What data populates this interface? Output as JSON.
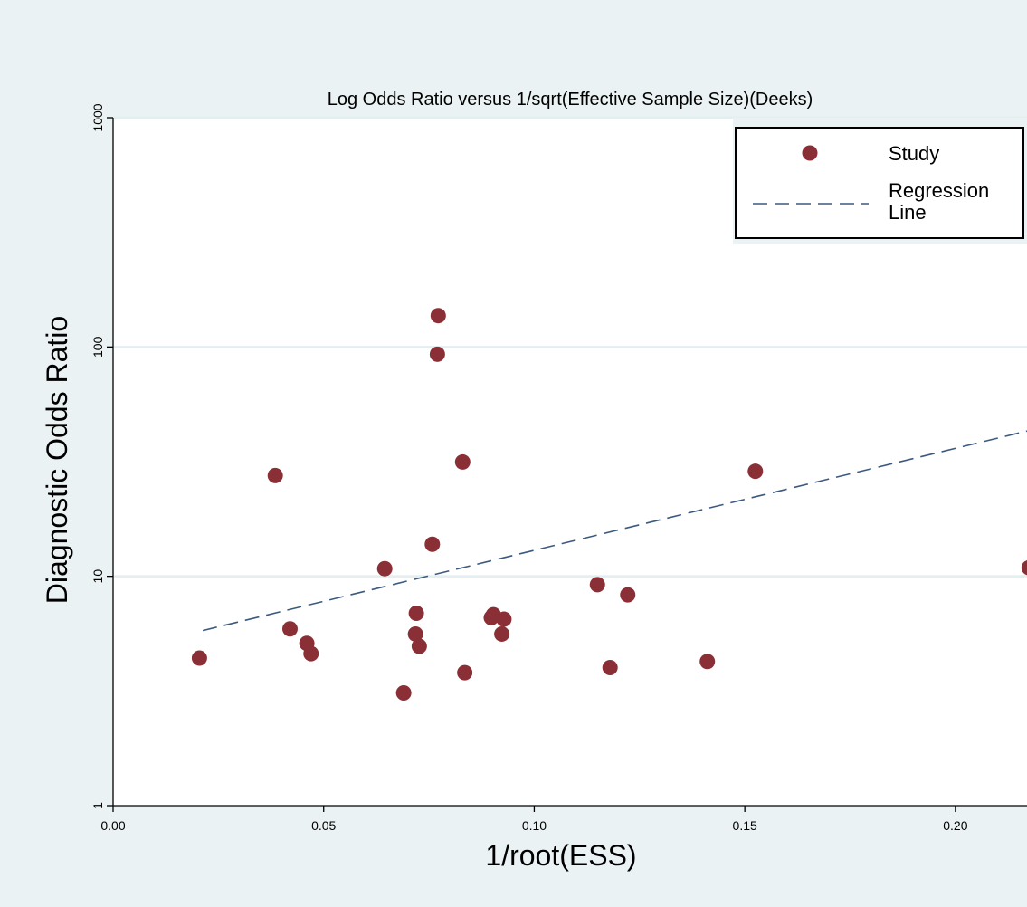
{
  "chart_data": {
    "type": "scatter",
    "title": "Log Odds Ratio versus 1/sqrt(Effective Sample Size)(Deeks)",
    "xlabel": "1/root(ESS)",
    "ylabel": "Diagnostic Odds Ratio",
    "xlim": [
      0,
      0.217
    ],
    "ylim": [
      1,
      1000
    ],
    "yscale": "log",
    "x_ticks": [
      "0.00",
      "0.05",
      "0.10",
      "0.15",
      "0.20"
    ],
    "x_tick_values": [
      0,
      0.05,
      0.1,
      0.15,
      0.2
    ],
    "y_ticks": [
      "1",
      "10",
      "100",
      "1000"
    ],
    "y_tick_values": [
      1,
      10,
      100,
      1000
    ],
    "grid": "horizontal",
    "legend_position": "top-right",
    "series": [
      {
        "name": "Study",
        "kind": "points",
        "color": "#8B2F36",
        "x": [
          0.0205,
          0.0385,
          0.042,
          0.046,
          0.047,
          0.0645,
          0.069,
          0.0718,
          0.072,
          0.0727,
          0.0758,
          0.077,
          0.0772,
          0.083,
          0.0835,
          0.0898,
          0.0903,
          0.0923,
          0.0928,
          0.115,
          0.118,
          0.1222,
          0.1411,
          0.1525,
          0.2175
        ],
        "y": [
          4.4,
          27.5,
          5.9,
          5.1,
          4.6,
          10.8,
          3.1,
          5.6,
          6.9,
          4.95,
          13.8,
          93,
          137,
          31.5,
          3.8,
          6.6,
          6.8,
          5.6,
          6.5,
          9.2,
          4.0,
          8.3,
          4.25,
          28.7,
          10.9
        ]
      },
      {
        "name": "Regression Line",
        "kind": "line",
        "color": "#3C5A80",
        "dash": "dashed",
        "x": [
          0.0213,
          0.217
        ],
        "y": [
          5.8,
          43
        ]
      }
    ],
    "legend": [
      {
        "label": "Study",
        "symbol": "marker"
      },
      {
        "label": "Regression\nLine",
        "symbol": "dashed-line"
      }
    ]
  }
}
